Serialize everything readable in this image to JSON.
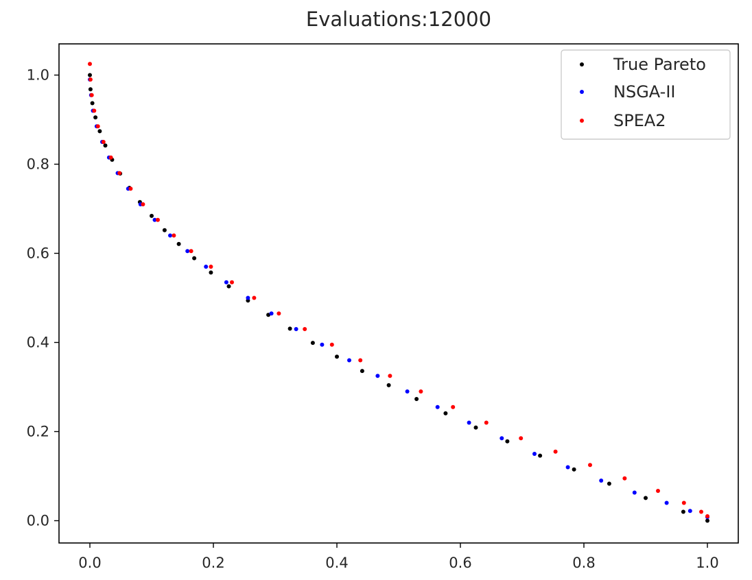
{
  "chart_data": {
    "type": "scatter",
    "title": "Evaluations:12000",
    "xlabel": "",
    "ylabel": "",
    "xlim": [
      -0.05,
      1.05
    ],
    "ylim": [
      -0.05,
      1.07
    ],
    "xticks": [
      0.0,
      0.2,
      0.4,
      0.6,
      0.8,
      1.0
    ],
    "yticks": [
      0.0,
      0.2,
      0.4,
      0.6,
      0.8,
      1.0
    ],
    "xtick_labels": [
      "0.0",
      "0.2",
      "0.4",
      "0.6",
      "0.8",
      "1.0"
    ],
    "ytick_labels": [
      "0.0",
      "0.2",
      "0.4",
      "0.6",
      "0.8",
      "1.0"
    ],
    "grid": false,
    "legend_position": "top-right",
    "series": [
      {
        "name": "True Pareto",
        "color": "#000000",
        "curve": "y = 1 - sqrt(x)",
        "x": [
          0,
          0.001,
          0.004,
          0.009,
          0.016,
          0.025,
          0.036,
          0.049,
          0.064,
          0.081,
          0.1,
          0.121,
          0.144,
          0.169,
          0.196,
          0.225,
          0.256,
          0.289,
          0.324,
          0.361,
          0.4,
          0.441,
          0.484,
          0.529,
          0.576,
          0.625,
          0.676,
          0.729,
          0.784,
          0.841,
          0.9,
          0.961,
          1.0
        ],
        "y": [
          1.0,
          0.968,
          0.937,
          0.905,
          0.874,
          0.842,
          0.81,
          0.779,
          0.747,
          0.715,
          0.684,
          0.652,
          0.621,
          0.589,
          0.557,
          0.526,
          0.494,
          0.462,
          0.431,
          0.399,
          0.368,
          0.336,
          0.304,
          0.273,
          0.241,
          0.209,
          0.178,
          0.146,
          0.115,
          0.083,
          0.051,
          0.02,
          0.0
        ]
      },
      {
        "name": "NSGA-II",
        "color": "#0000ff",
        "x": [
          0,
          0.002,
          0.005,
          0.011,
          0.02,
          0.031,
          0.045,
          0.062,
          0.082,
          0.105,
          0.13,
          0.158,
          0.188,
          0.221,
          0.256,
          0.294,
          0.334,
          0.376,
          0.42,
          0.466,
          0.514,
          0.563,
          0.614,
          0.667,
          0.72,
          0.774,
          0.828,
          0.882,
          0.934,
          0.972,
          1.0
        ],
        "y": [
          0.99,
          0.955,
          0.92,
          0.885,
          0.85,
          0.815,
          0.78,
          0.745,
          0.71,
          0.675,
          0.64,
          0.605,
          0.57,
          0.535,
          0.5,
          0.465,
          0.43,
          0.395,
          0.36,
          0.325,
          0.29,
          0.255,
          0.22,
          0.185,
          0.15,
          0.12,
          0.09,
          0.063,
          0.04,
          0.022,
          0.008
        ]
      },
      {
        "name": "SPEA2",
        "color": "#ff0000",
        "x": [
          0,
          0.001,
          0.003,
          0.007,
          0.013,
          0.022,
          0.034,
          0.048,
          0.066,
          0.086,
          0.11,
          0.136,
          0.164,
          0.196,
          0.23,
          0.266,
          0.306,
          0.348,
          0.392,
          0.438,
          0.486,
          0.536,
          0.588,
          0.642,
          0.698,
          0.754,
          0.81,
          0.866,
          0.92,
          0.962,
          0.99,
          1.0
        ],
        "y": [
          1.025,
          0.99,
          0.955,
          0.92,
          0.885,
          0.85,
          0.815,
          0.78,
          0.745,
          0.71,
          0.675,
          0.64,
          0.605,
          0.57,
          0.535,
          0.5,
          0.465,
          0.43,
          0.395,
          0.36,
          0.325,
          0.29,
          0.255,
          0.22,
          0.185,
          0.155,
          0.125,
          0.095,
          0.067,
          0.04,
          0.02,
          0.01
        ]
      }
    ]
  }
}
